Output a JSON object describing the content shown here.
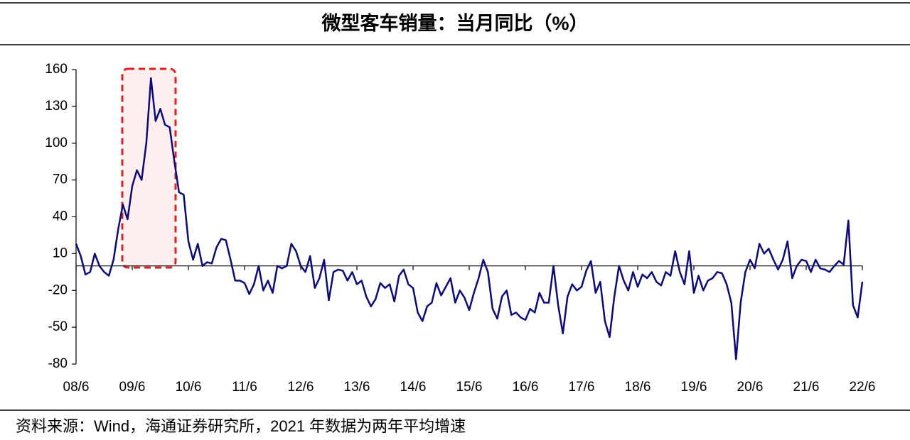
{
  "chart_data": {
    "type": "line",
    "title": "微型客车销量：当月同比（%）",
    "source": "资料来源：Wind，海通证券研究所，2021 年数据为两年平均增速",
    "categories": [
      "08/6",
      null,
      null,
      null,
      null,
      null,
      null,
      null,
      null,
      null,
      null,
      null,
      "09/6",
      null,
      null,
      null,
      null,
      null,
      null,
      null,
      null,
      null,
      null,
      null,
      "10/6",
      null,
      null,
      null,
      null,
      null,
      null,
      null,
      null,
      null,
      null,
      null,
      "11/6",
      null,
      null,
      null,
      null,
      null,
      null,
      null,
      null,
      null,
      null,
      null,
      "12/6",
      null,
      null,
      null,
      null,
      null,
      null,
      null,
      null,
      null,
      null,
      null,
      "13/6",
      null,
      null,
      null,
      null,
      null,
      null,
      null,
      null,
      null,
      null,
      null,
      "14/6",
      null,
      null,
      null,
      null,
      null,
      null,
      null,
      null,
      null,
      null,
      null,
      "15/6",
      null,
      null,
      null,
      null,
      null,
      null,
      null,
      null,
      null,
      null,
      null,
      "16/6",
      null,
      null,
      null,
      null,
      null,
      null,
      null,
      null,
      null,
      null,
      null,
      "17/6",
      null,
      null,
      null,
      null,
      null,
      null,
      null,
      null,
      null,
      null,
      null,
      "18/6",
      null,
      null,
      null,
      null,
      null,
      null,
      null,
      null,
      null,
      null,
      null,
      "19/6",
      null,
      null,
      null,
      null,
      null,
      null,
      null,
      null,
      null,
      null,
      null,
      "20/6",
      null,
      null,
      null,
      null,
      null,
      null,
      null,
      null,
      null,
      null,
      null,
      "21/6",
      null,
      null,
      null,
      null,
      null,
      null,
      null,
      null,
      null,
      null,
      null,
      "22/6"
    ],
    "series": [
      {
        "name": "微型客车销量当月同比",
        "color": "#0a0a80",
        "values": [
          18,
          8,
          -7,
          -5,
          10,
          0,
          -5,
          -8,
          5,
          30,
          50,
          38,
          65,
          78,
          70,
          100,
          153,
          118,
          128,
          115,
          113,
          85,
          60,
          58,
          20,
          5,
          18,
          0,
          3,
          2,
          15,
          22,
          21,
          5,
          -12,
          -12,
          -14,
          -23,
          -15,
          0,
          -20,
          -12,
          -22,
          0,
          -2,
          0,
          18,
          12,
          0,
          -5,
          8,
          -18,
          -10,
          5,
          -28,
          -5,
          -3,
          -4,
          -12,
          -5,
          -15,
          -12,
          -25,
          -33,
          -27,
          -14,
          -18,
          -15,
          -29,
          -8,
          -3,
          -15,
          -18,
          -38,
          -45,
          -33,
          -30,
          -14,
          -24,
          -17,
          -10,
          -30,
          -20,
          -26,
          -36,
          -22,
          -10,
          5,
          -5,
          -35,
          -43,
          -25,
          -20,
          -40,
          -38,
          -42,
          -44,
          -35,
          -38,
          -22,
          -30,
          -30,
          0,
          -32,
          -55,
          -25,
          -15,
          -20,
          -17,
          -4,
          4,
          -22,
          -13,
          -45,
          -58,
          -25,
          0,
          -12,
          -20,
          -5,
          -17,
          -7,
          -10,
          -5,
          -13,
          -16,
          -5,
          -8,
          12,
          -5,
          -15,
          12,
          -22,
          -8,
          -20,
          -12,
          -10,
          -5,
          -6,
          -15,
          -30,
          -76,
          -30,
          -5,
          5,
          -2,
          18,
          10,
          14,
          5,
          -3,
          5,
          20,
          -10,
          0,
          5,
          4,
          -5,
          5,
          -2,
          -3,
          -5,
          0,
          4,
          1,
          37,
          -32,
          -42,
          -13
        ]
      }
    ],
    "ylim": [
      -80,
      160
    ],
    "yticks": [
      160,
      130,
      100,
      70,
      40,
      10,
      -20,
      -50,
      -80
    ]
  }
}
